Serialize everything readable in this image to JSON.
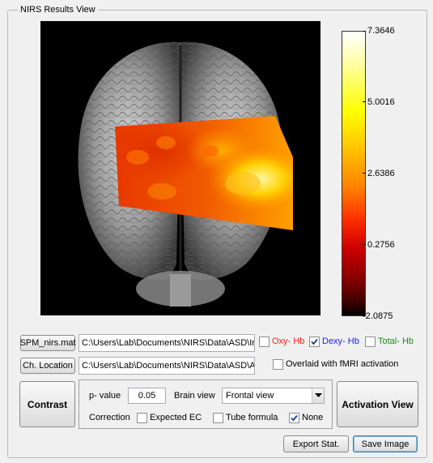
{
  "panel": {
    "title": "NIRS Results View"
  },
  "colors": {
    "oxy": "#ff2020",
    "dexy": "#2020ff",
    "total": "#1a8a1a"
  },
  "colorbar": {
    "ticks": [
      "7.3646",
      "5.0016",
      "2.6386",
      "0.2756",
      "-2.0875"
    ]
  },
  "files": {
    "spm_button": "SPM_nirs.mat",
    "spm_path": "C:\\Users\\Lab\\Documents\\NIRS\\Data\\ASD\\Inc",
    "ch_button": "Ch. Location",
    "ch_path": "C:\\Users\\Lab\\Documents\\NIRS\\Data\\ASD\\A("
  },
  "hb": {
    "oxy_label": "Oxy- Hb",
    "oxy_checked": false,
    "dexy_label": "Dexy- Hb",
    "dexy_checked": true,
    "total_label": "Total- Hb",
    "total_checked": false
  },
  "overlay": {
    "label": "Overlaid with fMRI activation",
    "checked": false
  },
  "contrast": {
    "button": "Contrast",
    "pvalue_label": "p- value",
    "pvalue": "0.05",
    "brainview_label": "Brain view",
    "brainview_selected": "Frontal view",
    "correction_label": "Correction",
    "expected_ec_label": "Expected EC",
    "expected_ec_checked": false,
    "tube_label": "Tube formula",
    "tube_checked": false,
    "none_label": "None",
    "none_checked": true
  },
  "activation_button": "Activation View",
  "export_button": "Export Stat.",
  "save_button": "Save Image"
}
